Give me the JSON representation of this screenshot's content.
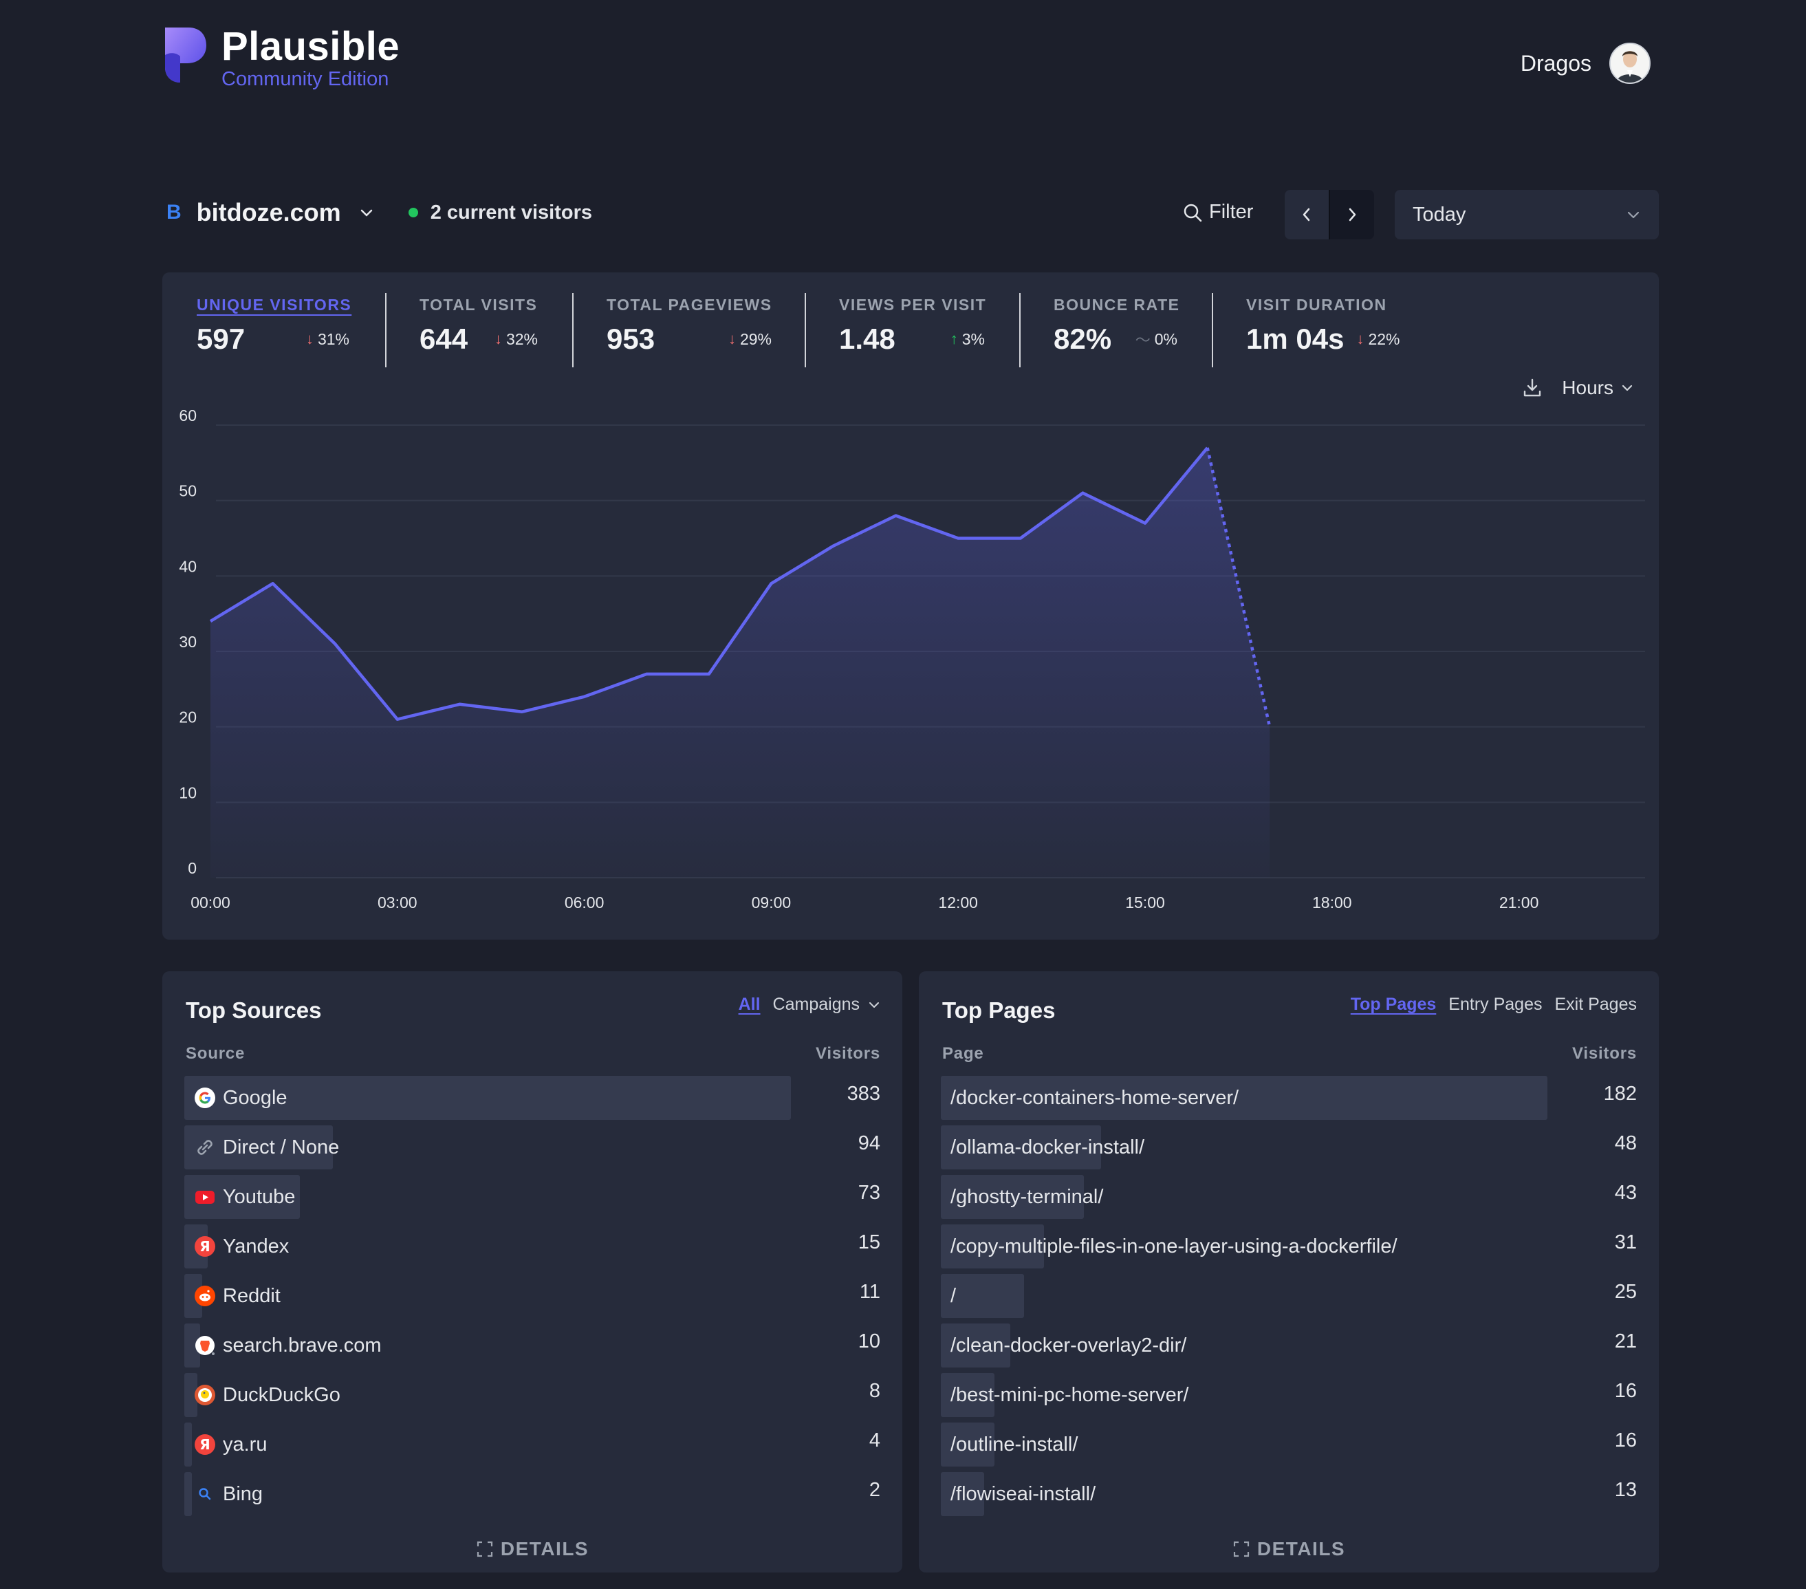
{
  "brand": {
    "name": "Plausible",
    "edition": "Community Edition"
  },
  "user": {
    "name": "Dragos"
  },
  "site": {
    "favicon_letter": "B",
    "domain": "bitdoze.com",
    "live_visitors": "2 current visitors"
  },
  "toolbar": {
    "filter_label": "Filter",
    "period": "Today"
  },
  "stats": [
    {
      "label": "UNIQUE VISITORS",
      "value": "597",
      "change": "31%",
      "direction": "down",
      "active": true
    },
    {
      "label": "TOTAL VISITS",
      "value": "644",
      "change": "32%",
      "direction": "down"
    },
    {
      "label": "TOTAL PAGEVIEWS",
      "value": "953",
      "change": "29%",
      "direction": "down"
    },
    {
      "label": "VIEWS PER VISIT",
      "value": "1.48",
      "change": "3%",
      "direction": "up"
    },
    {
      "label": "BOUNCE RATE",
      "value": "82%",
      "change": "0%",
      "direction": "flat"
    },
    {
      "label": "VISIT DURATION",
      "value": "1m 04s",
      "change": "22%",
      "direction": "down"
    }
  ],
  "chart_controls": {
    "interval": "Hours"
  },
  "chart_data": {
    "type": "line",
    "x": [
      "00:00",
      "01:00",
      "02:00",
      "03:00",
      "04:00",
      "05:00",
      "06:00",
      "07:00",
      "08:00",
      "09:00",
      "10:00",
      "11:00",
      "12:00",
      "13:00",
      "14:00",
      "15:00",
      "16:00",
      "17:00"
    ],
    "values": [
      34,
      39,
      31,
      21,
      23,
      22,
      24,
      27,
      27,
      39,
      44,
      48,
      45,
      45,
      51,
      47,
      57,
      20
    ],
    "partial_last_point": true,
    "xticks": [
      "00:00",
      "03:00",
      "06:00",
      "09:00",
      "12:00",
      "15:00",
      "18:00",
      "21:00"
    ],
    "ylim": [
      0,
      60
    ],
    "yticks": [
      0,
      10,
      20,
      30,
      40,
      50,
      60
    ],
    "grid": true,
    "line_color": "#6366f1"
  },
  "top_sources": {
    "title": "Top Sources",
    "tabs": {
      "active": "All",
      "other": "Campaigns"
    },
    "col_left": "Source",
    "col_right": "Visitors",
    "rows": [
      {
        "label": "Google",
        "value": "383",
        "icon": "google-icon",
        "share": 1.0
      },
      {
        "label": "Direct / None",
        "value": "94",
        "icon": "link-icon",
        "share": 0.245
      },
      {
        "label": "Youtube",
        "value": "73",
        "icon": "youtube-icon",
        "share": 0.191
      },
      {
        "label": "Yandex",
        "value": "15",
        "icon": "yandex-icon",
        "share": 0.039
      },
      {
        "label": "Reddit",
        "value": "11",
        "icon": "reddit-icon",
        "share": 0.029
      },
      {
        "label": "search.brave.com",
        "value": "10",
        "icon": "brave-icon",
        "share": 0.026
      },
      {
        "label": "DuckDuckGo",
        "value": "8",
        "icon": "duckduckgo-icon",
        "share": 0.021
      },
      {
        "label": "ya.ru",
        "value": "4",
        "icon": "yandex-icon",
        "share": 0.01
      },
      {
        "label": "Bing",
        "value": "2",
        "icon": "bing-search-icon",
        "share": 0.005
      }
    ],
    "details_label": "DETAILS"
  },
  "top_pages": {
    "title": "Top Pages",
    "tabs": [
      "Top Pages",
      "Entry Pages",
      "Exit Pages"
    ],
    "col_left": "Page",
    "col_right": "Visitors",
    "rows": [
      {
        "label": "/docker-containers-home-server/",
        "value": "182",
        "share": 1.0
      },
      {
        "label": "/ollama-docker-install/",
        "value": "48",
        "share": 0.264
      },
      {
        "label": "/ghostty-terminal/",
        "value": "43",
        "share": 0.236
      },
      {
        "label": "/copy-multiple-files-in-one-layer-using-a-dockerfile/",
        "value": "31",
        "share": 0.17
      },
      {
        "label": "/",
        "value": "25",
        "share": 0.137
      },
      {
        "label": "/clean-docker-overlay2-dir/",
        "value": "21",
        "share": 0.115
      },
      {
        "label": "/best-mini-pc-home-server/",
        "value": "16",
        "share": 0.088
      },
      {
        "label": "/outline-install/",
        "value": "16",
        "share": 0.088
      },
      {
        "label": "/flowiseai-install/",
        "value": "13",
        "share": 0.071
      }
    ],
    "details_label": "DETAILS"
  }
}
